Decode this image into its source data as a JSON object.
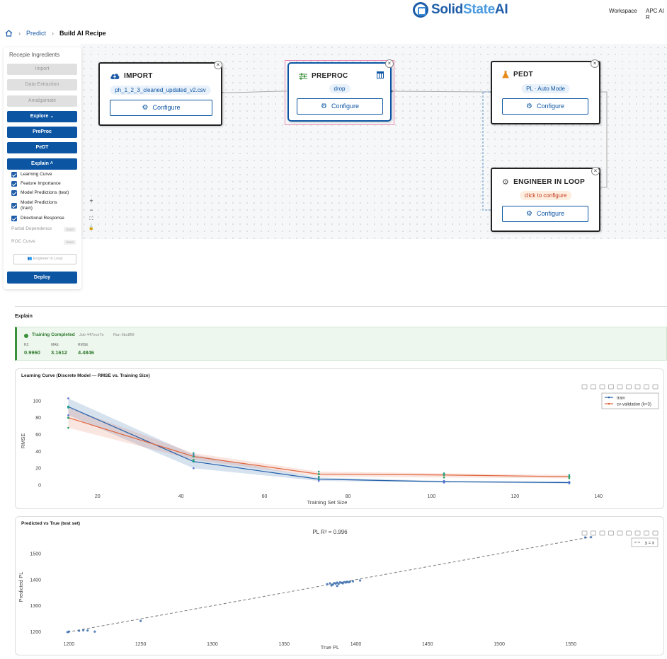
{
  "header": {
    "logo": {
      "solid": "Solid",
      "state": "State",
      "ai": "AI"
    },
    "nav": [
      "Workspace",
      "APC AI R"
    ]
  },
  "breadcrumb": {
    "level1": "Predict",
    "level2": "Build AI Recipe"
  },
  "sidebar": {
    "title": "Recepie Ingredients",
    "disabled_buttons": [
      "Import",
      "Data Extraction",
      "Amalgamate"
    ],
    "explore": "Explore",
    "preproc": "PreProc",
    "pedt": "PeDT",
    "explain": "Explain",
    "explain_items": [
      "Learning Curve",
      "Feature Importance",
      "Model Predictions (test)",
      "Model Predictions (train)",
      "Directional Response"
    ],
    "soon_items": [
      "Partial Dependence",
      "ROC Curve"
    ],
    "soon_badge": "Soon",
    "engineer_button": "Engineer in Loop",
    "deploy": "Deploy"
  },
  "zoom_controls": [
    "+",
    "−",
    "⛶",
    "🔒"
  ],
  "nodes": {
    "import": {
      "title": "IMPORT",
      "pill": "ph_1_2_3_cleaned_updated_v2.csv",
      "configure": "Configure"
    },
    "preproc": {
      "title": "PREPROC",
      "pill": "drop",
      "configure": "Configure"
    },
    "pedt": {
      "title": "PEDT",
      "pill": "PL · Auto Mode",
      "configure": "Configure"
    },
    "eil": {
      "title": "ENGINEER IN LOOP",
      "pill": "click to configure",
      "configure": "Configure"
    }
  },
  "explain": {
    "title": "Explain",
    "status": "Training Completed",
    "job": "Job 447ece7e",
    "run": "Run 9bc8f6f",
    "metrics": [
      {
        "key": "R2",
        "value": "0.9960"
      },
      {
        "key": "MAE",
        "value": "3.1612"
      },
      {
        "key": "RMSE",
        "value": "4.4846"
      }
    ]
  },
  "colors": {
    "primary": "#0c55a3",
    "train": "#1f5da8",
    "cv": "#e0643c",
    "success": "#3a8f3a"
  },
  "chart_data": [
    {
      "type": "line",
      "title": "Learning Curve (Discrete Model — RMSE vs. Training Size)",
      "xlabel": "Training Set Size",
      "ylabel": "RMSE",
      "xlim": [
        8,
        142
      ],
      "ylim": [
        -5,
        110
      ],
      "xticks": [
        20,
        40,
        60,
        80,
        100,
        120,
        140
      ],
      "yticks": [
        0,
        20,
        40,
        60,
        80,
        100
      ],
      "legend_position": "top-right",
      "series": [
        {
          "name": "train",
          "x": [
            13,
            43,
            73,
            103,
            133
          ],
          "y": [
            93,
            28,
            7,
            4,
            3
          ],
          "band": [
            [
              83,
              103
            ],
            [
              20,
              36
            ],
            [
              5,
              9
            ],
            [
              3,
              5
            ],
            [
              2,
              4
            ]
          ]
        },
        {
          "name": "cv-validation (k=3)",
          "x": [
            13,
            43,
            73,
            103,
            133
          ],
          "y": [
            80,
            34,
            13,
            12,
            10
          ],
          "band": [
            [
              68,
              92
            ],
            [
              30,
              38
            ],
            [
              10,
              16
            ],
            [
              9,
              14
            ],
            [
              8,
              12
            ]
          ]
        }
      ]
    },
    {
      "type": "scatter",
      "title": "Predicted vs True (test set)",
      "subtitle": "PL   R² = 0.996",
      "xlabel": "True PL",
      "ylabel": "Predicted PL",
      "xlim": [
        1185,
        1575
      ],
      "ylim": [
        1180,
        1565
      ],
      "xticks": [
        1200,
        1250,
        1300,
        1350,
        1400,
        1450,
        1500,
        1550
      ],
      "yticks": [
        1200,
        1300,
        1400,
        1500
      ],
      "legend_position": "top-right",
      "legend": [
        "y = x"
      ],
      "points": [
        [
          1199,
          1199
        ],
        [
          1200,
          1201
        ],
        [
          1207,
          1204
        ],
        [
          1210,
          1206
        ],
        [
          1213,
          1205
        ],
        [
          1218,
          1201
        ],
        [
          1250,
          1242
        ],
        [
          1380,
          1383
        ],
        [
          1382,
          1386
        ],
        [
          1384,
          1381
        ],
        [
          1385,
          1387
        ],
        [
          1386,
          1385
        ],
        [
          1387,
          1389
        ],
        [
          1388,
          1384
        ],
        [
          1389,
          1390
        ],
        [
          1390,
          1388
        ],
        [
          1391,
          1386
        ],
        [
          1392,
          1391
        ],
        [
          1393,
          1389
        ],
        [
          1394,
          1392
        ],
        [
          1395,
          1390
        ],
        [
          1396,
          1393
        ],
        [
          1383,
          1378
        ],
        [
          1387,
          1376
        ],
        [
          1398,
          1394
        ],
        [
          1403,
          1397
        ],
        [
          1560,
          1562
        ],
        [
          1564,
          1563
        ]
      ]
    }
  ]
}
